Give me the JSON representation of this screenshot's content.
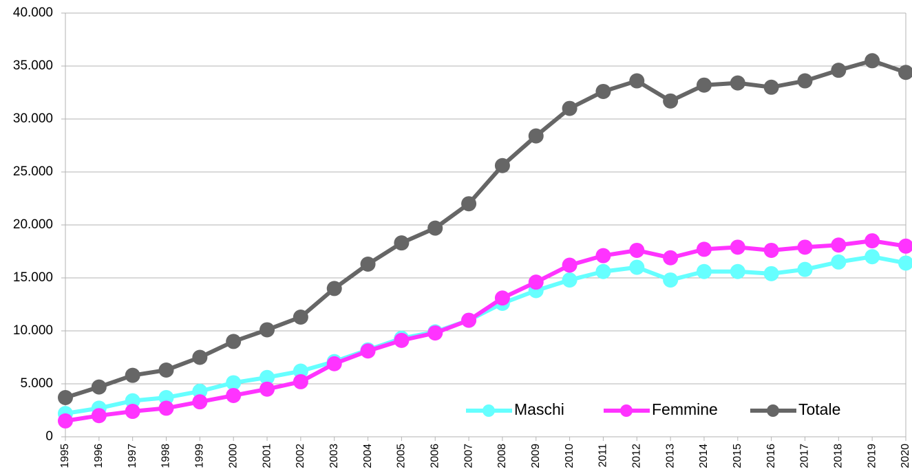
{
  "chart_data": {
    "type": "line",
    "categories": [
      "1995",
      "1996",
      "1997",
      "1998",
      "1999",
      "2000",
      "2001",
      "2002",
      "2003",
      "2004",
      "2005",
      "2006",
      "2007",
      "2008",
      "2009",
      "2010",
      "2011",
      "2012",
      "2013",
      "2014",
      "2015",
      "2016",
      "2017",
      "2018",
      "2019",
      "2020"
    ],
    "series": [
      {
        "name": "Maschi",
        "color": "#66ffff",
        "values": [
          2200,
          2700,
          3400,
          3700,
          4300,
          5100,
          5600,
          6200,
          7100,
          8200,
          9300,
          9900,
          11000,
          12600,
          13800,
          14800,
          15600,
          16000,
          14800,
          15600,
          15600,
          15400,
          15800,
          16500,
          17000,
          16400
        ]
      },
      {
        "name": "Femmine",
        "color": "#ff33ff",
        "values": [
          1500,
          2000,
          2400,
          2700,
          3300,
          3900,
          4500,
          5200,
          6900,
          8100,
          9100,
          9800,
          11000,
          13100,
          14600,
          16200,
          17100,
          17600,
          16900,
          17700,
          17900,
          17600,
          17900,
          18100,
          18500,
          18000
        ]
      },
      {
        "name": "Totale",
        "color": "#666666",
        "values": [
          3700,
          4700,
          5800,
          6300,
          7500,
          9000,
          10100,
          11300,
          14000,
          16300,
          18300,
          19700,
          22000,
          25600,
          28400,
          31000,
          32600,
          33600,
          31700,
          33200,
          33400,
          33000,
          33600,
          34600,
          35500,
          34400
        ]
      }
    ],
    "ylim": [
      0,
      40000
    ],
    "yticks": [
      0,
      {
        "value": 5000,
        "label": "5.000"
      },
      {
        "value": 10000,
        "label": "10.000"
      },
      {
        "value": 15000,
        "label": "15.000"
      },
      {
        "value": 20000,
        "label": "20.000"
      },
      {
        "value": 25000,
        "label": "25.000"
      },
      {
        "value": 30000,
        "label": "30.000"
      },
      {
        "value": 35000,
        "label": "35.000"
      },
      {
        "value": 40000,
        "label": "40.000"
      }
    ],
    "grid": true,
    "legend": "lower right"
  }
}
